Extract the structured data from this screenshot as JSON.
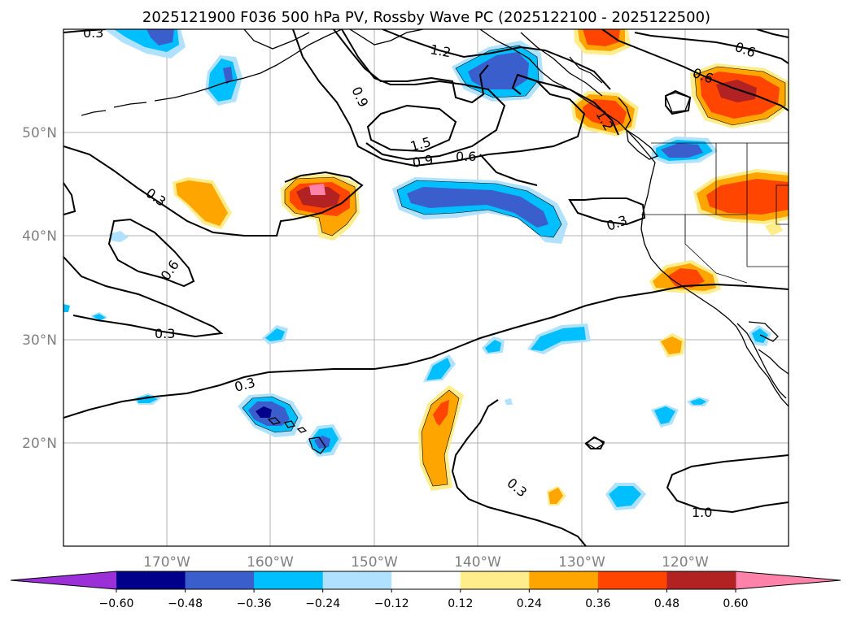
{
  "title": "2025121900 F036 500 hPa PV, Rossby Wave PC (2025122100 - 2025122500)",
  "map": {
    "lat_labels": [
      "50°N",
      "40°N",
      "30°N",
      "20°N"
    ],
    "lon_labels": [
      "170°W",
      "160°W",
      "150°W",
      "140°W",
      "130°W",
      "120°W"
    ],
    "gridlines": true,
    "contour_labels": [
      "0.3",
      "1.2",
      "0.6",
      "0.9",
      "1.5",
      "0.9",
      "0.6",
      "0.6",
      "0.3",
      "0.6",
      "0.3",
      "0.3",
      "0.3",
      "0.3",
      "1.0",
      "1.2"
    ]
  },
  "colorbar": {
    "tick_labels": [
      "−0.60",
      "−0.48",
      "−0.36",
      "−0.24",
      "−0.12",
      "0.12",
      "0.24",
      "0.36",
      "0.48",
      "0.60"
    ],
    "colors": [
      "#9b30d9",
      "#00008b",
      "#3a5fcd",
      "#00bfff",
      "#b0e2ff",
      "#ffffff",
      "#ffec8b",
      "#ffa500",
      "#ff4500",
      "#b22222",
      "#ff82ab"
    ]
  }
}
